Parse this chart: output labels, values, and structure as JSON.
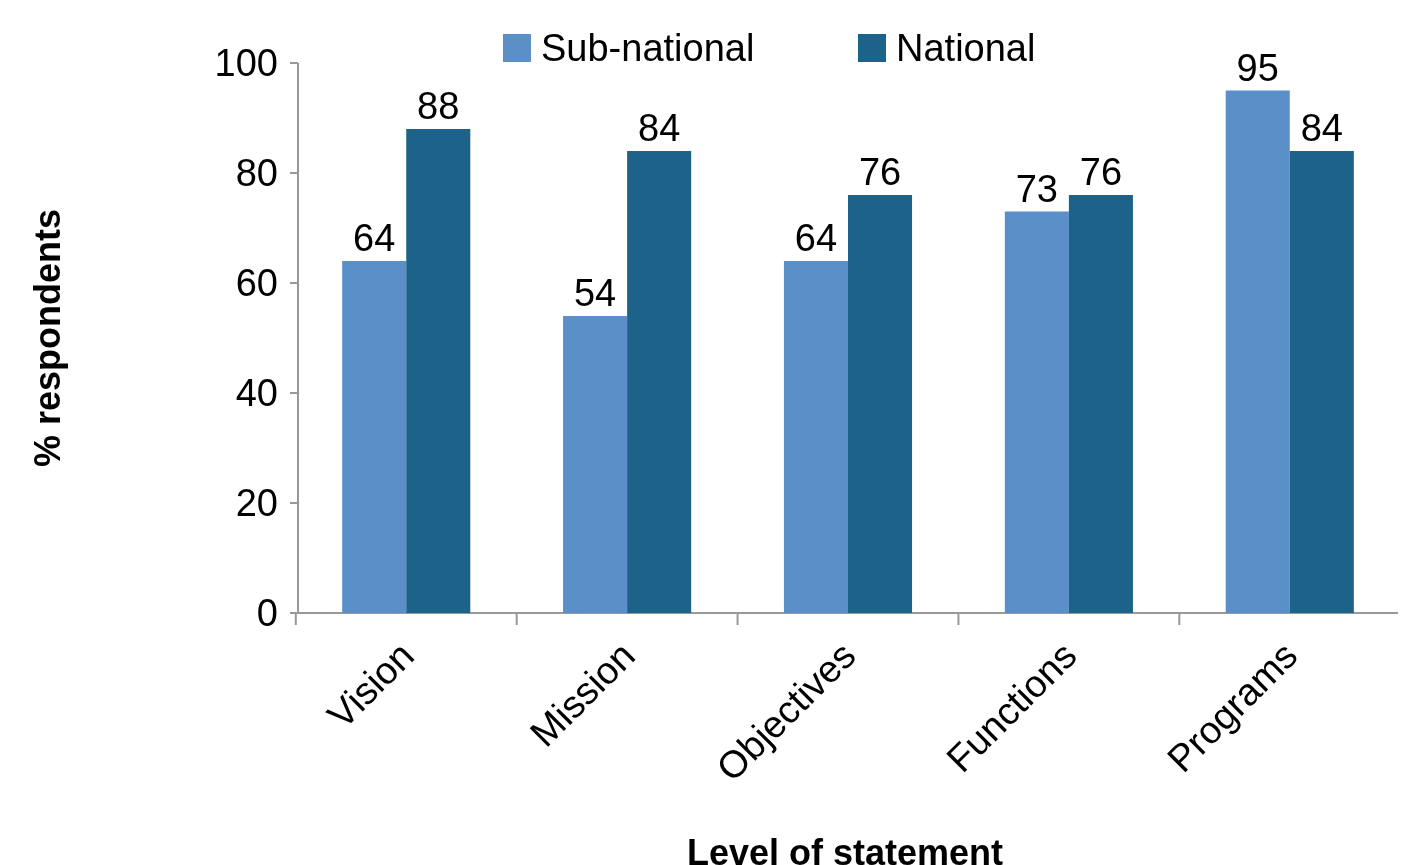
{
  "chart_data": {
    "type": "bar",
    "xlabel": "Level of statement",
    "ylabel": "% respondents",
    "categories": [
      "Vision",
      "Mission",
      "Objectives",
      "Functions",
      "Programs"
    ],
    "series": [
      {
        "name": "Sub-national",
        "color": "#5a8fc8",
        "values": [
          64,
          54,
          64,
          73,
          95
        ]
      },
      {
        "name": "National",
        "color": "#1d6289",
        "values": [
          88,
          84,
          76,
          76,
          84
        ]
      }
    ],
    "ylim": [
      0,
      100
    ],
    "yticks": [
      0,
      20,
      40,
      60,
      80,
      100
    ],
    "data_labels": true,
    "legend": "top",
    "grid": false
  }
}
